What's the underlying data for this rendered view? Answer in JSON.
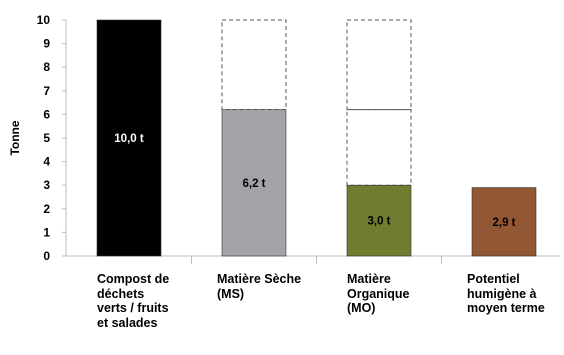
{
  "chart_data": {
    "type": "bar",
    "title": "",
    "xlabel": "",
    "ylabel": "Tonne",
    "ylim": [
      0,
      10
    ],
    "yticks": [
      0,
      1,
      2,
      3,
      4,
      5,
      6,
      7,
      8,
      9,
      10
    ],
    "grid": false,
    "categories": [
      "Compost de déchets verts / fruits et salades",
      "Matière Sèche (MS)",
      "Matière Organique (MO)",
      "Potentiel humigène à moyen terme"
    ],
    "values": [
      10.0,
      6.2,
      3.0,
      2.9
    ],
    "data_labels": [
      "10,0 t",
      "6,2 t",
      "3,0 t",
      "2,9 t"
    ],
    "bar_colors": [
      "#000000",
      "#a1a3a6",
      "#6f7d31",
      "#915833"
    ],
    "label_colors": [
      "#ffffff",
      "#000000",
      "#000000",
      "#000000"
    ],
    "reference_outlines": [
      {
        "category_index": 1,
        "segments": [
          [
            6.2,
            10.0
          ]
        ]
      },
      {
        "category_index": 2,
        "segments": [
          [
            3.0,
            6.2
          ],
          [
            6.2,
            10.0
          ]
        ]
      }
    ]
  }
}
